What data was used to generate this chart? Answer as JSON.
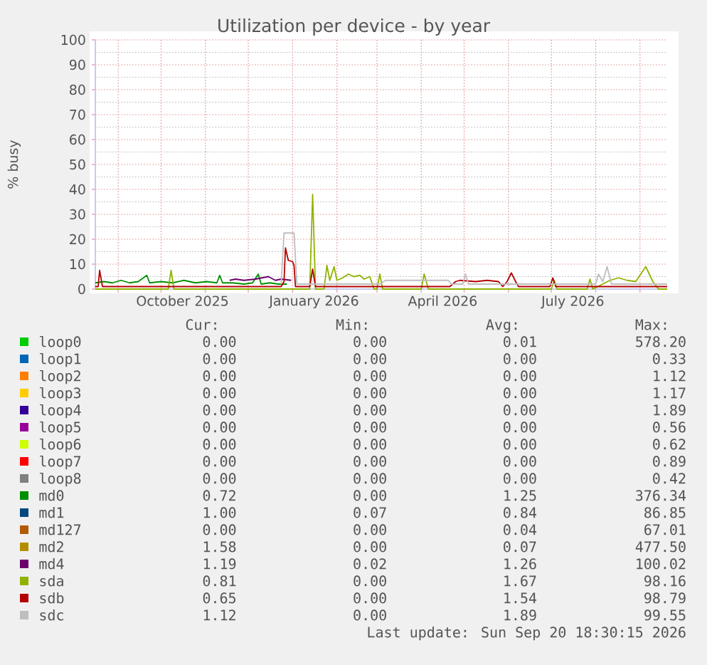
{
  "chart_data": {
    "type": "line",
    "title": "Utilization per device - by year",
    "ylabel": "% busy",
    "xlim": [
      "2025-08-16",
      "2026-09-20"
    ],
    "ylim": [
      0,
      100
    ],
    "xticks": [
      {
        "value": "2025-09-01",
        "label": null
      },
      {
        "value": "2025-10-01",
        "label": null
      },
      {
        "value": "2025-10-16",
        "label": "October 2025"
      },
      {
        "value": "2025-11-01",
        "label": null
      },
      {
        "value": "2025-12-01",
        "label": null
      },
      {
        "value": "2026-01-01",
        "label": null
      },
      {
        "value": "2026-01-16",
        "label": "January 2026"
      },
      {
        "value": "2026-02-01",
        "label": null
      },
      {
        "value": "2026-03-01",
        "label": null
      },
      {
        "value": "2026-04-01",
        "label": null
      },
      {
        "value": "2026-04-16",
        "label": "April 2026"
      },
      {
        "value": "2026-05-01",
        "label": null
      },
      {
        "value": "2026-06-01",
        "label": null
      },
      {
        "value": "2026-07-01",
        "label": null
      },
      {
        "value": "2026-07-16",
        "label": "July 2026"
      },
      {
        "value": "2026-08-01",
        "label": null
      },
      {
        "value": "2026-09-01",
        "label": null
      }
    ],
    "yticks": [
      0,
      10,
      20,
      30,
      40,
      50,
      60,
      70,
      80,
      90,
      100
    ],
    "grid": true,
    "legend": "bottom",
    "series": [
      {
        "name": "loop0",
        "color": "#00cc00"
      },
      {
        "name": "loop1",
        "color": "#0066b3"
      },
      {
        "name": "loop2",
        "color": "#ff8000"
      },
      {
        "name": "loop3",
        "color": "#ffcc00"
      },
      {
        "name": "loop4",
        "color": "#330099"
      },
      {
        "name": "loop5",
        "color": "#990099"
      },
      {
        "name": "loop6",
        "color": "#ccff00"
      },
      {
        "name": "loop7",
        "color": "#ff0000"
      },
      {
        "name": "loop8",
        "color": "#808080"
      },
      {
        "name": "md0",
        "color": "#008f00",
        "x": [
          "2025-08-16",
          "2025-08-22",
          "2025-08-28",
          "2025-09-03",
          "2025-09-09",
          "2025-09-15",
          "2025-09-21",
          "2025-09-23",
          "2025-10-01",
          "2025-10-09",
          "2025-10-17",
          "2025-10-25",
          "2025-11-02",
          "2025-11-09",
          "2025-11-11",
          "2025-11-13",
          "2025-11-20",
          "2025-11-28",
          "2025-12-04",
          "2025-12-08",
          "2025-12-10",
          "2025-12-16",
          "2025-12-22",
          "2025-12-28"
        ],
        "values": [
          2.5,
          3,
          2.5,
          3.5,
          2.5,
          3,
          5.5,
          2.5,
          3,
          2.5,
          3.5,
          2.5,
          3,
          2.5,
          5.5,
          2.5,
          2.5,
          2,
          2.5,
          6,
          2,
          2.5,
          2,
          2
        ]
      },
      {
        "name": "md1",
        "color": "#00487d"
      },
      {
        "name": "md127",
        "color": "#b35a00"
      },
      {
        "name": "md2",
        "color": "#b38f00"
      },
      {
        "name": "md4",
        "color": "#6b006b",
        "x": [
          "2025-11-18",
          "2025-11-22",
          "2025-11-28",
          "2025-12-06",
          "2025-12-15",
          "2025-12-20",
          "2025-12-24",
          "2025-12-31"
        ],
        "values": [
          3.5,
          4,
          3.5,
          4,
          5,
          3.5,
          4,
          3.5
        ]
      },
      {
        "name": "sda",
        "color": "#8fb300",
        "x": [
          "2025-08-16",
          "2025-10-06",
          "2025-10-08",
          "2025-10-10",
          "2026-01-13",
          "2026-01-15",
          "2026-01-17",
          "2026-01-23",
          "2026-01-25",
          "2026-01-27",
          "2026-01-30",
          "2026-02-01",
          "2026-02-05",
          "2026-02-09",
          "2026-02-13",
          "2026-02-17",
          "2026-02-20",
          "2026-02-24",
          "2026-02-27",
          "2026-03-01",
          "2026-03-03",
          "2026-03-05",
          "2026-04-01",
          "2026-04-03",
          "2026-04-06",
          "2026-07-01",
          "2026-07-03",
          "2026-07-05",
          "2026-07-26",
          "2026-07-28",
          "2026-07-30",
          "2026-08-11",
          "2026-08-17",
          "2026-08-23",
          "2026-08-29",
          "2026-09-05",
          "2026-09-10",
          "2026-09-14",
          "2026-09-20"
        ],
        "values": [
          0,
          0,
          7.5,
          0,
          0,
          38,
          0,
          0,
          9.5,
          3.5,
          9,
          3.5,
          4.5,
          6,
          5,
          5.5,
          4,
          5,
          0,
          0,
          6,
          0,
          0,
          6,
          0,
          0,
          3.5,
          0,
          0,
          4,
          0,
          3.5,
          4.5,
          3.5,
          3,
          9,
          3,
          0,
          0
        ]
      },
      {
        "name": "sdb",
        "color": "#b30000",
        "x": [
          "2025-08-16",
          "2025-08-18",
          "2025-08-19",
          "2025-08-21",
          "2025-12-24",
          "2025-12-26",
          "2025-12-27",
          "2025-12-29",
          "2026-01-01",
          "2026-01-02",
          "2026-01-03",
          "2026-01-13",
          "2026-01-15",
          "2026-01-17",
          "2026-04-21",
          "2026-04-25",
          "2026-04-28",
          "2026-05-09",
          "2026-05-17",
          "2026-05-25",
          "2026-05-28",
          "2026-05-31",
          "2026-06-03",
          "2026-06-06",
          "2026-06-08",
          "2026-06-30",
          "2026-07-02",
          "2026-07-04",
          "2026-09-20"
        ],
        "values": [
          1,
          1,
          7.5,
          1,
          1,
          3,
          16.5,
          11.5,
          11,
          9.5,
          1,
          1,
          8,
          1,
          1,
          3,
          3.5,
          3,
          3.5,
          3,
          1,
          3,
          6.5,
          3,
          1,
          1,
          4.5,
          1,
          1
        ]
      },
      {
        "name": "sdc",
        "color": "#bebebe",
        "x": [
          "2025-12-24",
          "2025-12-26",
          "2026-01-02",
          "2026-01-04",
          "2026-03-03",
          "2026-03-07",
          "2026-04-20",
          "2026-04-22",
          "2026-04-30",
          "2026-05-02",
          "2026-05-04",
          "2026-08-01",
          "2026-08-03",
          "2026-08-06",
          "2026-08-09",
          "2026-08-12",
          "2026-09-20"
        ],
        "values": [
          2,
          22.5,
          22.5,
          2,
          2,
          3.5,
          3.5,
          2,
          2,
          6,
          2,
          2,
          6,
          3,
          9,
          2,
          2
        ]
      }
    ],
    "annotations": [
      "Cur:",
      "Min:",
      "Avg:",
      "Max:",
      "0.00",
      "0.00",
      "0.01",
      "578.20",
      "0.00",
      "0.00",
      "0.00",
      "0.33",
      "0.00",
      "0.00",
      "0.00",
      "1.12",
      "0.00",
      "0.00",
      "0.00",
      "1.17",
      "0.00",
      "0.00",
      "0.00",
      "1.89",
      "0.00",
      "0.00",
      "0.00",
      "0.56",
      "0.00",
      "0.00",
      "0.00",
      "0.62",
      "0.00",
      "0.00",
      "0.00",
      "0.89",
      "0.00",
      "0.00",
      "0.00",
      "0.42",
      "0.72",
      "0.00",
      "1.25",
      "376.34",
      "1.00",
      "0.07",
      "0.84",
      "86.85",
      "0.00",
      "0.00",
      "0.04",
      "67.01",
      "1.58",
      "0.00",
      "0.07",
      "477.50",
      "1.19",
      "0.02",
      "1.26",
      "100.02",
      "0.81",
      "0.00",
      "1.67",
      "98.16",
      "0.65",
      "0.00",
      "1.54",
      "98.79",
      "1.12",
      "0.00",
      "1.89",
      "99.55",
      "Last update: Sun Sep 20 18:30:15 2026"
    ]
  }
}
